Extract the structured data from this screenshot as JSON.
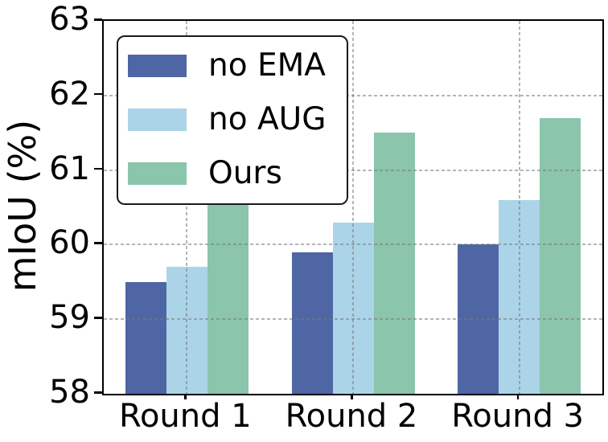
{
  "chart_data": {
    "type": "bar",
    "ylabel": "mIoU (%)",
    "xlabel": "",
    "categories": [
      "Round 1",
      "Round 2",
      "Round 3"
    ],
    "series": [
      {
        "name": "no EMA",
        "color": "#4F66A4",
        "values": [
          59.5,
          59.9,
          60.0
        ]
      },
      {
        "name": "no AUG",
        "color": "#ACD4E8",
        "values": [
          59.7,
          60.3,
          60.6
        ]
      },
      {
        "name": "Ours",
        "color": "#8AC5AC",
        "values": [
          60.8,
          61.5,
          61.7
        ]
      }
    ],
    "ylim": [
      58,
      63
    ],
    "yticks": [
      58,
      59,
      60,
      61,
      62,
      63
    ],
    "grid": "dashed, horizontal and vertical at ticks",
    "legend_position": "upper-left",
    "colors": {
      "spine": "#000000",
      "grid": "#9e9e9e",
      "background": "#ffffff"
    }
  }
}
